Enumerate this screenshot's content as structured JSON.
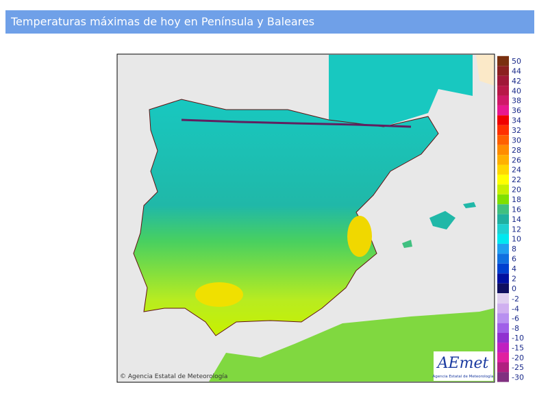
{
  "header": {
    "title": "Temperaturas máximas de hoy en Península y Baleares"
  },
  "map": {
    "credit": "© Agencia Estatal de Meteorología",
    "logo": {
      "name": "AEmet",
      "subtitle": "Agencia Estatal de Meteorología"
    }
  },
  "legend": {
    "entries": [
      {
        "label": 50,
        "color": "#7a3010"
      },
      {
        "label": 44,
        "color": "#8b2020"
      },
      {
        "label": 42,
        "color": "#a01838"
      },
      {
        "label": 40,
        "color": "#b81848"
      },
      {
        "label": 38,
        "color": "#d01868"
      },
      {
        "label": 36,
        "color": "#e81890"
      },
      {
        "label": 34,
        "color": "#f00000"
      },
      {
        "label": 32,
        "color": "#ff3000"
      },
      {
        "label": 30,
        "color": "#ff6000"
      },
      {
        "label": 28,
        "color": "#ff8c00"
      },
      {
        "label": 26,
        "color": "#ffb000"
      },
      {
        "label": 24,
        "color": "#ffd700"
      },
      {
        "label": 22,
        "color": "#ffff00"
      },
      {
        "label": 20,
        "color": "#c8f000"
      },
      {
        "label": 18,
        "color": "#80e000"
      },
      {
        "label": 16,
        "color": "#40c080"
      },
      {
        "label": 14,
        "color": "#20b0a0"
      },
      {
        "label": 12,
        "color": "#20d0d0"
      },
      {
        "label": 10,
        "color": "#00e8f0"
      },
      {
        "label": 8,
        "color": "#20a0f0"
      },
      {
        "label": 6,
        "color": "#1070e0"
      },
      {
        "label": 4,
        "color": "#0040d0"
      },
      {
        "label": 2,
        "color": "#0010a0"
      },
      {
        "label": 0,
        "color": "#101060"
      },
      {
        "label": -2,
        "color": "#e0d0f0"
      },
      {
        "label": -4,
        "color": "#d0b0f0"
      },
      {
        "label": -6,
        "color": "#b890f0"
      },
      {
        "label": -8,
        "color": "#a060e8"
      },
      {
        "label": -10,
        "color": "#9030d0"
      },
      {
        "label": -15,
        "color": "#c020c0"
      },
      {
        "label": -20,
        "color": "#e020a0"
      },
      {
        "label": -25,
        "color": "#b02080"
      },
      {
        "label": -30,
        "color": "#803080"
      }
    ]
  }
}
